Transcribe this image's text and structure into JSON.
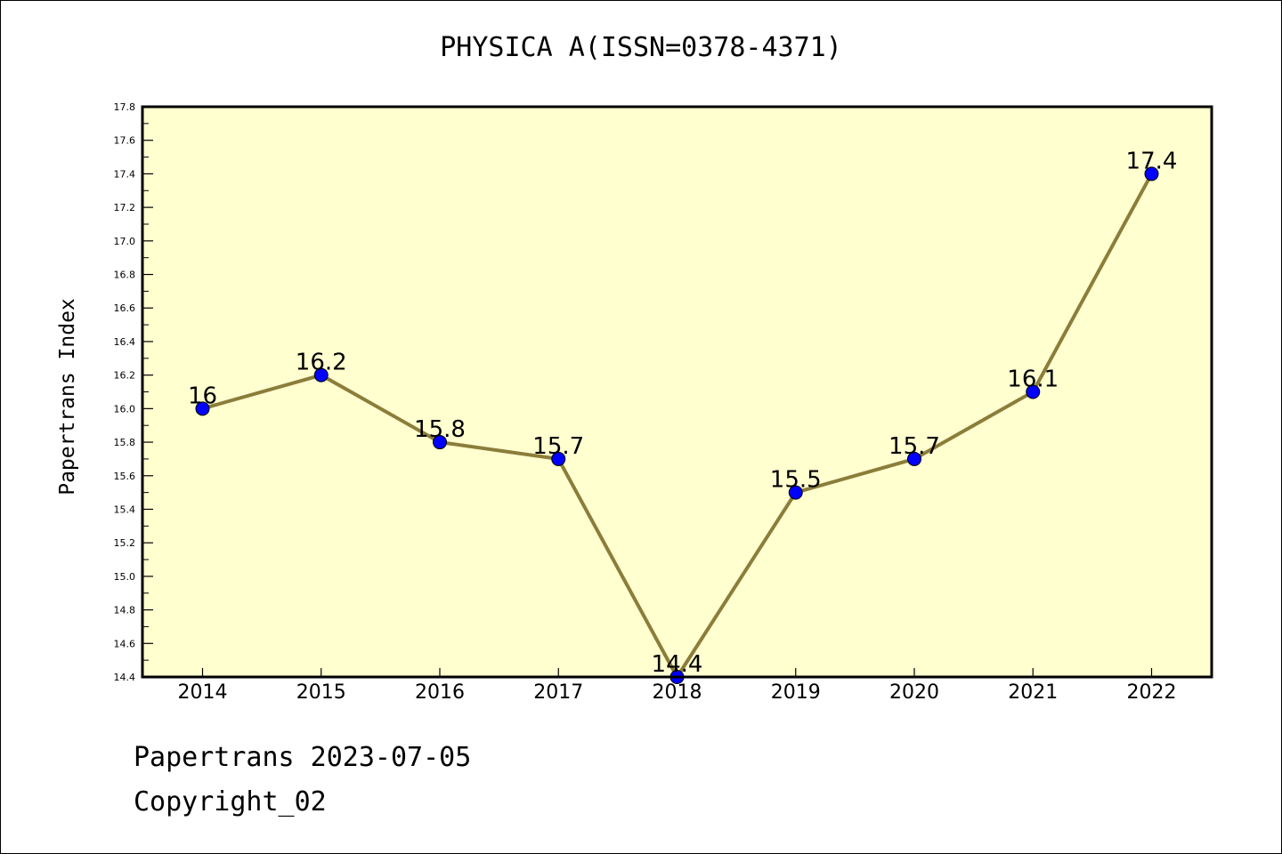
{
  "chart_data": {
    "type": "line",
    "title": "PHYSICA A(ISSN=0378-4371)",
    "ylabel": "Papertrans Index",
    "xlabel": "",
    "x": [
      "2014",
      "2015",
      "2016",
      "2017",
      "2018",
      "2019",
      "2020",
      "2021",
      "2022"
    ],
    "series": [
      {
        "values": [
          16.0,
          16.2,
          15.8,
          15.7,
          14.4,
          15.5,
          15.7,
          16.1,
          17.4
        ],
        "labels": [
          "16",
          "16.2",
          "15.8",
          "15.7",
          "14.4",
          "15.5",
          "15.7",
          "16.1",
          "17.4"
        ],
        "line_color": "#8b7d3a",
        "marker_color": "#0000ff"
      }
    ],
    "ylim": [
      14.4,
      17.8
    ],
    "yticks": [
      "14.4",
      "14.6",
      "14.8",
      "15.0",
      "15.2",
      "15.4",
      "15.6",
      "15.8",
      "16.0",
      "16.2",
      "16.4",
      "16.6",
      "16.8",
      "17.0",
      "17.2",
      "17.4",
      "17.6",
      "17.8"
    ],
    "grid": false,
    "plot_background": "#ffffd0"
  },
  "footer": {
    "line1": "Papertrans 2023-07-05",
    "line2": "Copyright_02"
  }
}
